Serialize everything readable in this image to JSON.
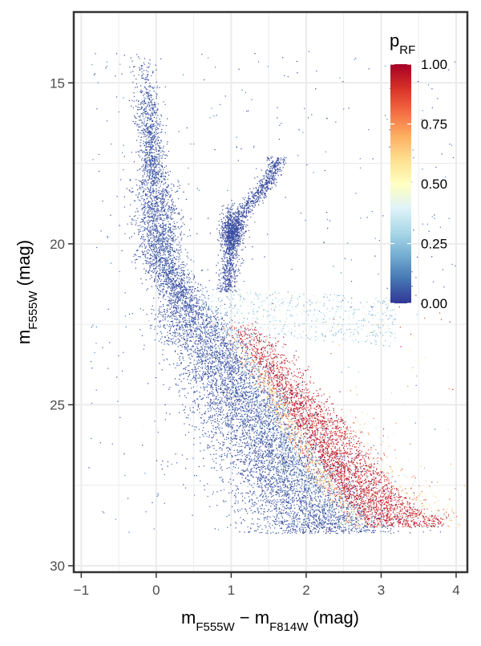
{
  "chart_data": {
    "type": "scatter",
    "x_axis": {
      "label_main": "m",
      "label_sub1": "F555W",
      "label_op": " − m",
      "label_sub2": "F814W",
      "label_unit": " (mag)",
      "ticks": [
        -1,
        0,
        1,
        2,
        3,
        4
      ],
      "tick_labels": [
        "−1",
        "0",
        "1",
        "2",
        "3",
        "4"
      ],
      "range": [
        -1.1,
        4.15
      ]
    },
    "y_axis": {
      "label_main": "m",
      "label_sub": "F555W",
      "label_unit": " (mag)",
      "ticks": [
        15,
        20,
        25,
        30
      ],
      "tick_labels": [
        "15",
        "20",
        "25",
        "30"
      ],
      "range": [
        30.2,
        12.8
      ],
      "reversed": true
    },
    "grid": true,
    "color_scale": {
      "title_main": "p",
      "title_sub": "RF",
      "range": [
        0,
        1
      ],
      "ticks": [
        0.0,
        0.25,
        0.5,
        0.75,
        1.0
      ],
      "tick_labels": [
        "0.00",
        "0.25",
        "0.50",
        "0.75",
        "1.00"
      ],
      "colors": [
        "#313695",
        "#4575b4",
        "#74add1",
        "#abd9e9",
        "#e0f3f8",
        "#ffffbf",
        "#fee090",
        "#fdae61",
        "#f46d43",
        "#d73027",
        "#a50026"
      ],
      "legend_position": "top-right-inside"
    },
    "features": {
      "main_sequence": {
        "description_points": [
          [
            -0.15,
            14.0
          ],
          [
            0.0,
            17.5
          ],
          [
            0.15,
            20.5
          ],
          [
            0.6,
            22.5
          ],
          [
            1.1,
            24.0
          ],
          [
            1.5,
            25.5
          ],
          [
            1.9,
            27.0
          ],
          [
            2.2,
            28.0
          ],
          [
            2.5,
            28.8
          ]
        ]
      },
      "red_giant_branch": {
        "description_points": [
          [
            0.95,
            21.3
          ],
          [
            1.0,
            20.0
          ],
          [
            1.15,
            19.0
          ],
          [
            1.45,
            18.2
          ],
          [
            1.6,
            17.5
          ]
        ]
      },
      "red_clump": {
        "center": [
          1.0,
          19.6
        ]
      },
      "high_p_sequence": {
        "description_points": [
          [
            1.1,
            22.4
          ],
          [
            1.4,
            23.5
          ],
          [
            1.7,
            24.5
          ],
          [
            2.0,
            25.5
          ],
          [
            2.3,
            26.5
          ],
          [
            2.6,
            27.5
          ],
          [
            3.0,
            28.2
          ],
          [
            3.3,
            28.6
          ]
        ]
      },
      "point_count_approx": 16000
    }
  }
}
